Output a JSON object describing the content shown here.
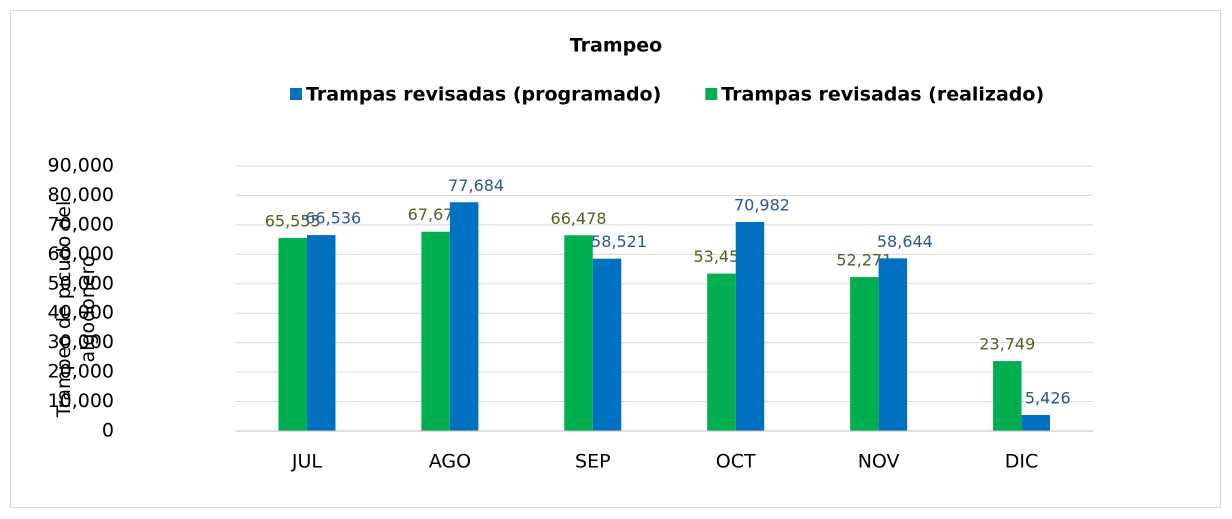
{
  "chart_data": {
    "type": "bar",
    "title": "Trampeo",
    "y_label": "Trampeo de picudo del algodonero",
    "categories": [
      "JUL",
      "AGO",
      "SEP",
      "OCT",
      "NOV",
      "DIC"
    ],
    "series": [
      {
        "name": "Trampas revisadas (programado)",
        "color": "#0070c0",
        "label_color": "#2f5597",
        "values": [
          66536,
          77684,
          58521,
          70982,
          58644,
          5426
        ],
        "value_labels": [
          "66,536",
          "77,684",
          "58,521",
          "70,982",
          "58,644",
          "5,426"
        ]
      },
      {
        "name": "Trampas revisadas (realizado)",
        "color": "#00b050",
        "label_color": "#4f6228",
        "values": [
          65555,
          67672,
          66478,
          53455,
          52271,
          23749
        ],
        "value_labels": [
          "65,555",
          "67,672",
          "66,478",
          "53,455",
          "52,271",
          "23,749"
        ]
      }
    ],
    "ylim": [
      0,
      90000
    ],
    "yticks": [
      0,
      {
        "value": 10000,
        "label": "10,000"
      },
      {
        "value": 20000,
        "label": "20,000"
      },
      {
        "value": 30000,
        "label": "30,000"
      },
      {
        "value": 40000,
        "label": "40,000"
      },
      {
        "value": 50000,
        "label": "50,000"
      },
      {
        "value": 60000,
        "label": "60,000"
      },
      {
        "value": 70000,
        "label": "70,000"
      },
      {
        "value": 80000,
        "label": "80,000"
      },
      {
        "value": 90000,
        "label": "90,000"
      }
    ],
    "grid": true,
    "legend": "top"
  }
}
